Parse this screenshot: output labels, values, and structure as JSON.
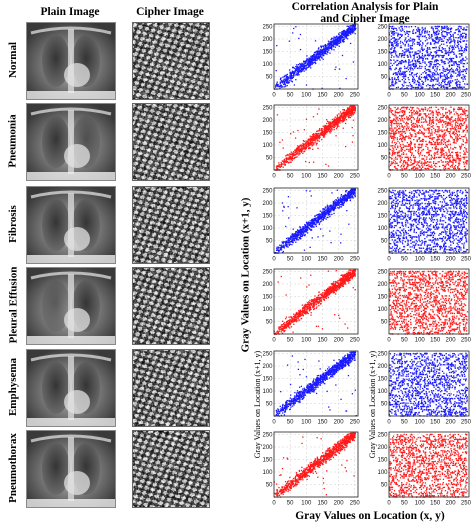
{
  "headers": {
    "plain": "Plain Image",
    "cipher": "Cipher Image",
    "corr_line1": "Correlation Analysis for Plain",
    "corr_line2": "and Cipher Image"
  },
  "rows": [
    {
      "label": "Normal",
      "color": "#1a1aff"
    },
    {
      "label": "Pneumonia",
      "color": "#ff1a1a"
    },
    {
      "label": "Fibrosis",
      "color": "#1a1aff"
    },
    {
      "label": "Pleural Effusion",
      "color": "#ff1a1a"
    },
    {
      "label": "Emphysema",
      "color": "#1a1aff"
    },
    {
      "label": "Pneumothorax",
      "color": "#ff1a1a"
    }
  ],
  "axis_labels": {
    "y_main": "Gray Values on Location (x+1, y)",
    "y_small_left": "Gray Values on Location (x+1, y)",
    "y_small_right": "Gray Values on Location (x+1, y)",
    "x_main": "Gray Values on Location (x, y)"
  },
  "chart_data": [
    {
      "type": "scatter",
      "subject": "plain image",
      "title": "",
      "xlim": [
        0,
        260
      ],
      "ylim": [
        0,
        260
      ],
      "x_ticks": [
        0,
        50,
        100,
        150,
        200,
        250
      ],
      "y_ticks": [
        0,
        50,
        100,
        150,
        200,
        250
      ],
      "grid": true,
      "pattern": "diagonal",
      "note_from_ticks": "points concentrated along y = x"
    },
    {
      "type": "scatter",
      "subject": "cipher image",
      "title": "",
      "xlim": [
        0,
        260
      ],
      "ylim": [
        0,
        260
      ],
      "x_ticks": [
        0,
        50,
        100,
        150,
        200,
        250
      ],
      "y_ticks": [
        0,
        50,
        100,
        150,
        200,
        250
      ],
      "grid": true,
      "pattern": "uniform"
    }
  ]
}
